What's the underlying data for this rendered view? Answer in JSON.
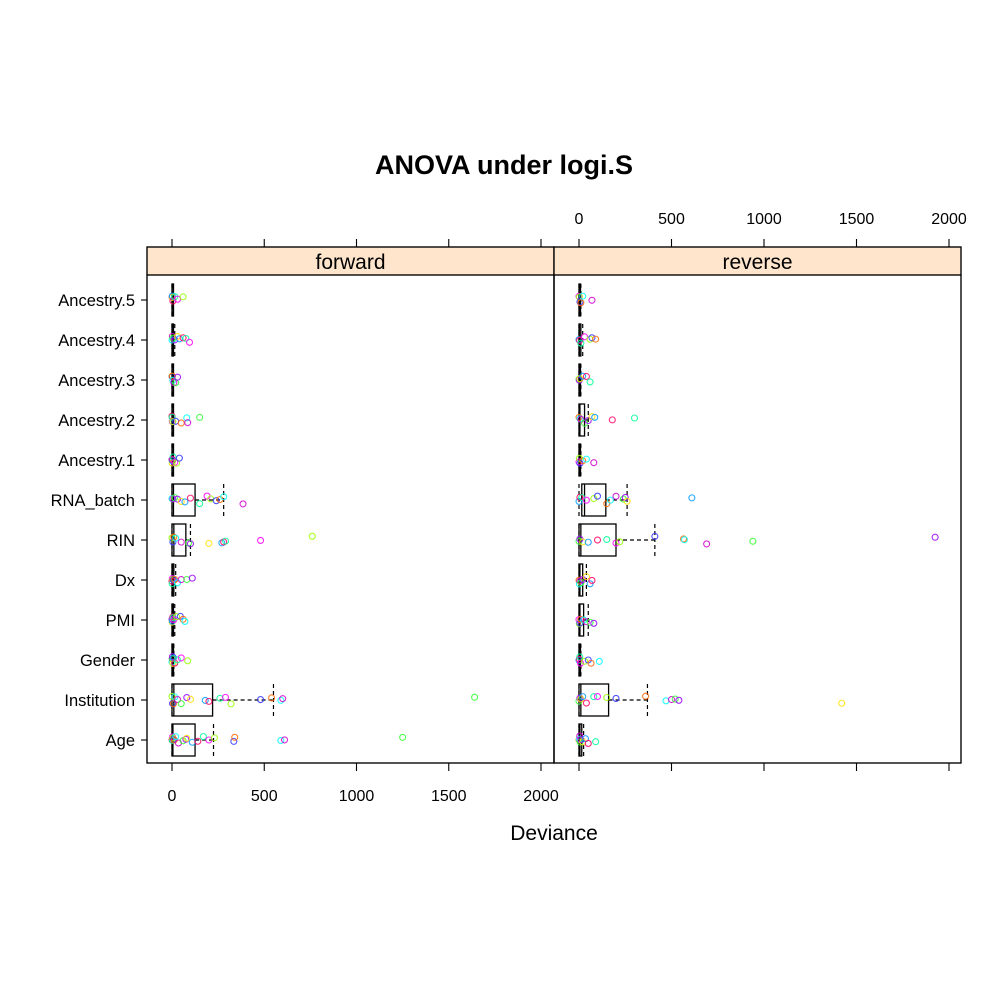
{
  "chart_data": {
    "type": "box",
    "title": "ANOVA under logi.S",
    "xlabel": "Deviance",
    "ylabel": "",
    "xlim": [
      0,
      2000
    ],
    "xticks": [
      "0",
      "500",
      "1000",
      "1500",
      "2000"
    ],
    "categories": [
      "Age",
      "Institution",
      "Gender",
      "PMI",
      "Dx",
      "RIN",
      "RNA_batch",
      "Ancestry.1",
      "Ancestry.2",
      "Ancestry.3",
      "Ancestry.4",
      "Ancestry.5"
    ],
    "point_colors": [
      "#ff0066",
      "#ff6600",
      "#ffe000",
      "#99ff00",
      "#33ff33",
      "#00ff99",
      "#00ffff",
      "#0099ff",
      "#3333ff",
      "#9900ff",
      "#ff00ff",
      "#cc00cc"
    ],
    "panels": [
      {
        "name": "forward",
        "boxes": [
          {
            "category": "Age",
            "q1": 0,
            "median": 5,
            "q3": 125,
            "whisker_low": 0,
            "whisker_high": 225,
            "points": [
              0,
              2,
              3,
              5,
              8,
              12,
              20,
              35,
              60,
              75,
              80,
              110,
              140,
              170,
              200,
              230,
              335,
              340,
              590,
              610,
              1250
            ]
          },
          {
            "category": "Institution",
            "q1": 0,
            "median": 10,
            "q3": 220,
            "whisker_low": 0,
            "whisker_high": 550,
            "points": [
              0,
              3,
              8,
              15,
              30,
              50,
              80,
              100,
              180,
              200,
              260,
              290,
              320,
              480,
              540,
              590,
              600,
              1640
            ]
          },
          {
            "category": "Gender",
            "q1": 0,
            "median": 2,
            "q3": 5,
            "whisker_low": 0,
            "whisker_high": 10,
            "points": [
              0,
              1,
              2,
              3,
              5,
              8,
              15,
              30,
              50,
              85
            ]
          },
          {
            "category": "PMI",
            "q1": 0,
            "median": 3,
            "q3": 8,
            "whisker_low": 0,
            "whisker_high": 15,
            "points": [
              0,
              1,
              2,
              4,
              6,
              10,
              25,
              45,
              60,
              70
            ]
          },
          {
            "category": "Dx",
            "q1": 0,
            "median": 4,
            "q3": 10,
            "whisker_low": 0,
            "whisker_high": 20,
            "points": [
              0,
              1,
              2,
              5,
              8,
              15,
              30,
              50,
              80,
              110
            ]
          },
          {
            "category": "RIN",
            "q1": 0,
            "median": 10,
            "q3": 75,
            "whisker_low": 0,
            "whisker_high": 100,
            "points": [
              0,
              5,
              10,
              20,
              50,
              90,
              100,
              200,
              270,
              280,
              290,
              480,
              760
            ]
          },
          {
            "category": "RNA_batch",
            "q1": 0,
            "median": 8,
            "q3": 125,
            "whisker_low": 0,
            "whisker_high": 280,
            "points": [
              0,
              5,
              15,
              30,
              50,
              70,
              100,
              150,
              190,
              210,
              240,
              260,
              280,
              385
            ]
          },
          {
            "category": "Ancestry.1",
            "q1": 0,
            "median": 1,
            "q3": 3,
            "whisker_low": 0,
            "whisker_high": 6,
            "points": [
              0,
              1,
              2,
              4,
              6,
              15,
              25,
              40
            ]
          },
          {
            "category": "Ancestry.2",
            "q1": 0,
            "median": 1,
            "q3": 3,
            "whisker_low": 0,
            "whisker_high": 6,
            "points": [
              0,
              1,
              2,
              4,
              20,
              50,
              80,
              85,
              150
            ]
          },
          {
            "category": "Ancestry.3",
            "q1": 0,
            "median": 1,
            "q3": 2,
            "whisker_low": 0,
            "whisker_high": 4,
            "points": [
              0,
              1,
              2,
              5,
              10,
              20,
              30
            ]
          },
          {
            "category": "Ancestry.4",
            "q1": 0,
            "median": 2,
            "q3": 8,
            "whisker_low": 0,
            "whisker_high": 15,
            "points": [
              0,
              2,
              5,
              15,
              30,
              40,
              60,
              75,
              95
            ]
          },
          {
            "category": "Ancestry.5",
            "q1": 0,
            "median": 1,
            "q3": 3,
            "whisker_low": 0,
            "whisker_high": 6,
            "points": [
              0,
              1,
              2,
              5,
              15,
              30,
              60
            ]
          }
        ]
      },
      {
        "name": "reverse",
        "boxes": [
          {
            "category": "Age",
            "q1": 0,
            "median": 5,
            "q3": 15,
            "whisker_low": 0,
            "whisker_high": 25,
            "points": [
              0,
              2,
              4,
              6,
              10,
              20,
              35,
              50,
              90
            ]
          },
          {
            "category": "Institution",
            "q1": 0,
            "median": 10,
            "q3": 160,
            "whisker_low": 0,
            "whisker_high": 370,
            "points": [
              0,
              5,
              10,
              20,
              40,
              80,
              100,
              150,
              200,
              360,
              470,
              500,
              520,
              540,
              1420
            ]
          },
          {
            "category": "Gender",
            "q1": 0,
            "median": 2,
            "q3": 5,
            "whisker_low": 0,
            "whisker_high": 10,
            "points": [
              0,
              2,
              4,
              8,
              30,
              50,
              65,
              110
            ]
          },
          {
            "category": "PMI",
            "q1": 0,
            "median": 5,
            "q3": 25,
            "whisker_low": 0,
            "whisker_high": 50,
            "points": [
              0,
              2,
              5,
              10,
              25,
              40,
              60,
              80
            ]
          },
          {
            "category": "Dx",
            "q1": 0,
            "median": 5,
            "q3": 20,
            "whisker_low": 0,
            "whisker_high": 40,
            "points": [
              0,
              2,
              5,
              10,
              20,
              40,
              60,
              70
            ]
          },
          {
            "category": "RIN",
            "q1": 0,
            "median": 10,
            "q3": 200,
            "whisker_low": 0,
            "whisker_high": 410,
            "points": [
              0,
              5,
              20,
              50,
              100,
              150,
              200,
              220,
              410,
              565,
              570,
              690,
              940,
              1925
            ]
          },
          {
            "category": "RNA_batch",
            "q1": 15,
            "median": 30,
            "q3": 145,
            "whisker_low": 0,
            "whisker_high": 260,
            "points": [
              0,
              5,
              15,
              40,
              80,
              100,
              150,
              170,
              200,
              240,
              250,
              260,
              610
            ]
          },
          {
            "category": "Ancestry.1",
            "q1": 0,
            "median": 2,
            "q3": 5,
            "whisker_low": 0,
            "whisker_high": 10,
            "points": [
              0,
              2,
              5,
              20,
              40,
              80
            ]
          },
          {
            "category": "Ancestry.2",
            "q1": 0,
            "median": 5,
            "q3": 30,
            "whisker_low": 0,
            "whisker_high": 50,
            "points": [
              0,
              5,
              10,
              30,
              50,
              70,
              85,
              180,
              300
            ]
          },
          {
            "category": "Ancestry.3",
            "q1": 0,
            "median": 2,
            "q3": 5,
            "whisker_low": 0,
            "whisker_high": 10,
            "points": [
              0,
              2,
              5,
              20,
              40,
              60
            ]
          },
          {
            "category": "Ancestry.4",
            "q1": 0,
            "median": 3,
            "q3": 10,
            "whisker_low": 0,
            "whisker_high": 20,
            "points": [
              0,
              3,
              10,
              30,
              60,
              70,
              90
            ]
          },
          {
            "category": "Ancestry.5",
            "q1": 0,
            "median": 2,
            "q3": 5,
            "whisker_low": 0,
            "whisker_high": 10,
            "points": [
              0,
              2,
              5,
              10,
              20,
              70
            ]
          }
        ]
      }
    ]
  }
}
